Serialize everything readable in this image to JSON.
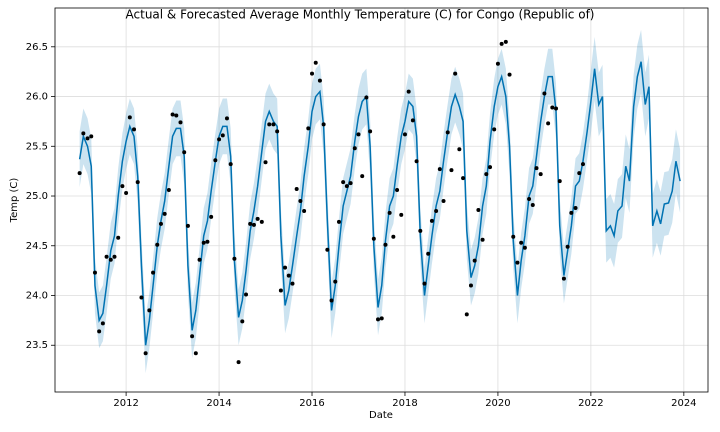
{
  "chart_data": {
    "type": "forecast",
    "title": "Actual & Forecasted Average Monthly Temperature (C) for Congo (Republic of)",
    "xlabel": "Date",
    "ylabel": "Temp (C)",
    "xlim": [
      2010.47,
      2024.52
    ],
    "ylim": [
      23.03,
      26.89
    ],
    "xticks": [
      2012,
      2014,
      2016,
      2018,
      2020,
      2022,
      2024
    ],
    "yticks": [
      23.5,
      {
        "value": 24,
        "label": "24.0"
      },
      24.5,
      {
        "value": 25,
        "label": "25.0"
      },
      25.5,
      {
        "value": 26,
        "label": "26.0"
      },
      26.5
    ],
    "grid": true,
    "x": [
      2011.0,
      2011.08,
      2011.17,
      2011.25,
      2011.33,
      2011.42,
      2011.5,
      2011.58,
      2011.67,
      2011.75,
      2011.83,
      2011.92,
      2012.0,
      2012.08,
      2012.17,
      2012.25,
      2012.33,
      2012.42,
      2012.5,
      2012.58,
      2012.67,
      2012.75,
      2012.83,
      2012.92,
      2013.0,
      2013.08,
      2013.17,
      2013.25,
      2013.33,
      2013.42,
      2013.5,
      2013.58,
      2013.67,
      2013.75,
      2013.83,
      2013.92,
      2014.0,
      2014.08,
      2014.17,
      2014.25,
      2014.33,
      2014.42,
      2014.5,
      2014.58,
      2014.67,
      2014.75,
      2014.83,
      2014.92,
      2015.0,
      2015.08,
      2015.17,
      2015.25,
      2015.33,
      2015.42,
      2015.5,
      2015.58,
      2015.67,
      2015.75,
      2015.83,
      2015.92,
      2016.0,
      2016.08,
      2016.17,
      2016.25,
      2016.33,
      2016.42,
      2016.5,
      2016.58,
      2016.67,
      2016.75,
      2016.83,
      2016.92,
      2017.0,
      2017.08,
      2017.17,
      2017.25,
      2017.33,
      2017.42,
      2017.5,
      2017.58,
      2017.67,
      2017.75,
      2017.83,
      2017.92,
      2018.0,
      2018.08,
      2018.17,
      2018.25,
      2018.33,
      2018.42,
      2018.5,
      2018.58,
      2018.67,
      2018.75,
      2018.83,
      2018.92,
      2019.0,
      2019.08,
      2019.17,
      2019.25,
      2019.33,
      2019.42,
      2019.5,
      2019.58,
      2019.67,
      2019.75,
      2019.83,
      2019.92,
      2020.0,
      2020.08,
      2020.17,
      2020.25,
      2020.33,
      2020.42,
      2020.5,
      2020.58,
      2020.67,
      2020.75,
      2020.83,
      2020.92,
      2021.0,
      2021.08,
      2021.17,
      2021.25,
      2021.33,
      2021.42,
      2021.5,
      2021.58,
      2021.67,
      2021.75,
      2021.83,
      2021.92,
      2022.0,
      2022.08,
      2022.17,
      2022.25,
      2022.33,
      2022.42,
      2022.5,
      2022.58,
      2022.67,
      2022.75,
      2022.83,
      2022.92,
      2023.0,
      2023.08,
      2023.17,
      2023.25,
      2023.33,
      2023.42,
      2023.5,
      2023.58,
      2023.67,
      2023.75,
      2023.83,
      2023.92
    ],
    "actual": {
      "color": "#000000",
      "values": [
        25.23,
        25.63,
        25.58,
        25.6,
        24.23,
        23.64,
        23.72,
        24.39,
        24.36,
        24.39,
        24.58,
        25.1,
        25.03,
        25.79,
        25.67,
        25.14,
        23.98,
        23.42,
        23.85,
        24.23,
        24.51,
        24.72,
        24.82,
        25.06,
        25.82,
        25.81,
        25.74,
        25.44,
        24.7,
        23.59,
        23.42,
        24.36,
        24.53,
        24.54,
        24.79,
        25.36,
        25.57,
        25.61,
        25.78,
        25.32,
        24.37,
        23.33,
        23.74,
        24.01,
        24.72,
        24.71,
        24.77,
        24.74,
        25.34,
        25.72,
        25.72,
        25.65,
        24.05,
        24.28,
        24.2,
        24.12,
        25.07,
        24.95,
        24.85,
        25.68,
        26.23,
        26.34,
        26.16,
        25.72,
        24.46,
        23.95,
        24.14,
        24.74,
        25.14,
        25.1,
        25.13,
        25.48,
        25.62,
        25.2,
        25.99,
        25.65,
        24.57,
        23.76,
        23.77,
        24.51,
        24.83,
        24.59,
        25.06,
        24.81,
        25.62,
        26.05,
        25.76,
        25.35,
        24.65,
        24.12,
        24.42,
        24.75,
        24.85,
        25.27,
        24.95,
        25.64,
        25.26,
        26.23,
        25.47,
        25.18,
        23.81,
        24.1,
        24.35,
        24.86,
        24.56,
        25.22,
        25.29,
        25.67,
        26.33,
        26.53,
        26.55,
        26.22,
        24.59,
        24.33,
        24.53,
        24.48,
        24.97,
        24.91,
        25.28,
        25.22,
        26.03,
        25.73,
        25.89,
        25.88,
        25.15,
        24.17,
        24.49,
        24.83,
        24.88,
        25.23,
        25.32,
        null,
        null,
        null,
        null,
        null,
        null,
        null,
        null,
        null,
        null,
        null,
        null,
        null,
        null,
        null,
        null,
        null,
        null,
        null,
        null,
        null,
        null,
        null,
        null,
        null
      ]
    },
    "forecast": {
      "color": "#0072B2",
      "values": [
        25.37,
        25.6,
        25.5,
        25.3,
        24.1,
        23.75,
        23.82,
        24.1,
        24.45,
        24.6,
        25.0,
        25.35,
        25.55,
        25.7,
        25.6,
        25.2,
        24.3,
        23.5,
        23.75,
        24.1,
        24.5,
        24.75,
        24.95,
        25.3,
        25.6,
        25.68,
        25.68,
        25.4,
        24.3,
        23.65,
        23.85,
        24.2,
        24.6,
        24.75,
        25.05,
        25.35,
        25.6,
        25.7,
        25.7,
        25.4,
        24.35,
        23.78,
        23.95,
        24.25,
        24.65,
        24.85,
        25.1,
        25.45,
        25.75,
        25.85,
        25.75,
        25.7,
        24.6,
        23.9,
        24.05,
        24.3,
        24.6,
        24.85,
        25.2,
        25.5,
        25.85,
        26.0,
        26.05,
        25.7,
        24.75,
        23.85,
        24.1,
        24.5,
        24.9,
        25.05,
        25.2,
        25.55,
        25.8,
        25.95,
        26.0,
        25.5,
        24.5,
        23.88,
        24.1,
        24.55,
        24.9,
        25.0,
        25.3,
        25.6,
        25.75,
        25.95,
        25.9,
        25.6,
        24.6,
        24.0,
        24.3,
        24.6,
        24.9,
        25.05,
        25.35,
        25.65,
        25.9,
        26.02,
        25.9,
        25.75,
        24.65,
        24.18,
        24.3,
        24.5,
        24.9,
        25.1,
        25.55,
        25.9,
        26.1,
        26.2,
        26.0,
        25.5,
        24.55,
        24.0,
        24.35,
        24.6,
        25.0,
        25.1,
        25.4,
        25.75,
        26.0,
        26.2,
        26.2,
        25.85,
        24.7,
        24.2,
        24.45,
        24.7,
        25.1,
        25.15,
        25.35,
        25.65,
        25.95,
        26.28,
        25.92,
        26.0,
        24.65,
        24.7,
        24.6,
        24.85,
        24.9,
        25.3,
        25.15,
        25.9,
        26.2,
        26.35,
        25.92,
        26.1,
        24.7,
        24.85,
        24.72,
        24.92,
        24.93,
        25.05,
        25.35,
        25.15
      ]
    },
    "band": {
      "color": "#0072B2",
      "lower": [
        25.09,
        25.32,
        25.22,
        25.02,
        23.82,
        23.47,
        23.54,
        23.82,
        24.17,
        24.32,
        24.72,
        25.07,
        25.27,
        25.42,
        25.32,
        24.92,
        24.02,
        23.22,
        23.47,
        23.82,
        24.22,
        24.47,
        24.67,
        25.02,
        25.32,
        25.4,
        25.4,
        25.12,
        24.02,
        23.37,
        23.57,
        23.92,
        24.32,
        24.47,
        24.77,
        25.07,
        25.32,
        25.42,
        25.42,
        25.12,
        24.07,
        23.5,
        23.67,
        23.97,
        24.37,
        24.57,
        24.82,
        25.17,
        25.47,
        25.57,
        25.47,
        25.42,
        24.32,
        23.62,
        23.77,
        24.02,
        24.32,
        24.57,
        24.92,
        25.22,
        25.57,
        25.72,
        25.77,
        25.42,
        24.47,
        23.57,
        23.82,
        24.22,
        24.62,
        24.77,
        24.92,
        25.27,
        25.52,
        25.67,
        25.72,
        25.22,
        24.22,
        23.6,
        23.82,
        24.27,
        24.62,
        24.72,
        25.02,
        25.32,
        25.47,
        25.67,
        25.62,
        25.32,
        24.32,
        23.72,
        24.02,
        24.32,
        24.62,
        24.77,
        25.07,
        25.37,
        25.62,
        25.74,
        25.62,
        25.47,
        24.37,
        23.9,
        24.02,
        24.22,
        24.62,
        24.82,
        25.27,
        25.62,
        25.82,
        25.92,
        25.72,
        25.22,
        24.27,
        23.72,
        24.07,
        24.32,
        24.72,
        24.82,
        25.12,
        25.47,
        25.72,
        25.92,
        25.92,
        25.57,
        24.42,
        23.92,
        24.17,
        24.42,
        24.82,
        24.87,
        25.07,
        25.37,
        25.63,
        25.96,
        25.6,
        25.68,
        24.33,
        24.38,
        24.28,
        24.53,
        24.58,
        24.98,
        24.83,
        25.58,
        25.88,
        26.03,
        25.6,
        25.78,
        24.38,
        24.53,
        24.4,
        24.6,
        24.61,
        24.73,
        25.03,
        24.83
      ],
      "upper": [
        25.65,
        25.88,
        25.78,
        25.58,
        24.38,
        24.03,
        24.1,
        24.38,
        24.73,
        24.88,
        25.28,
        25.63,
        25.83,
        25.98,
        25.88,
        25.48,
        24.58,
        23.78,
        24.03,
        24.38,
        24.78,
        25.03,
        25.23,
        25.58,
        25.88,
        25.96,
        25.96,
        25.68,
        24.58,
        23.93,
        24.13,
        24.48,
        24.88,
        25.03,
        25.33,
        25.63,
        25.88,
        25.98,
        25.98,
        25.68,
        24.63,
        24.06,
        24.23,
        24.53,
        24.93,
        25.13,
        25.38,
        25.73,
        26.03,
        26.13,
        26.03,
        25.98,
        24.88,
        24.18,
        24.33,
        24.58,
        24.88,
        25.13,
        25.48,
        25.78,
        26.13,
        26.28,
        26.33,
        25.98,
        25.03,
        24.13,
        24.38,
        24.78,
        25.18,
        25.33,
        25.48,
        25.83,
        26.08,
        26.23,
        26.28,
        25.78,
        24.78,
        24.16,
        24.38,
        24.83,
        25.18,
        25.28,
        25.58,
        25.88,
        26.03,
        26.23,
        26.18,
        25.88,
        24.88,
        24.28,
        24.58,
        24.88,
        25.18,
        25.33,
        25.63,
        25.93,
        26.18,
        26.3,
        26.18,
        26.03,
        24.93,
        24.46,
        24.58,
        24.78,
        25.18,
        25.38,
        25.83,
        26.18,
        26.38,
        26.48,
        26.28,
        25.78,
        24.83,
        24.28,
        24.63,
        24.88,
        25.28,
        25.38,
        25.68,
        26.03,
        26.28,
        26.48,
        26.48,
        26.13,
        24.98,
        24.48,
        24.73,
        24.98,
        25.38,
        25.43,
        25.63,
        25.93,
        26.27,
        26.6,
        26.24,
        26.32,
        24.97,
        25.02,
        24.92,
        25.17,
        25.22,
        25.62,
        25.47,
        26.22,
        26.52,
        26.67,
        26.24,
        26.42,
        25.02,
        25.17,
        25.04,
        25.24,
        25.25,
        25.37,
        25.67,
        25.47
      ]
    }
  }
}
